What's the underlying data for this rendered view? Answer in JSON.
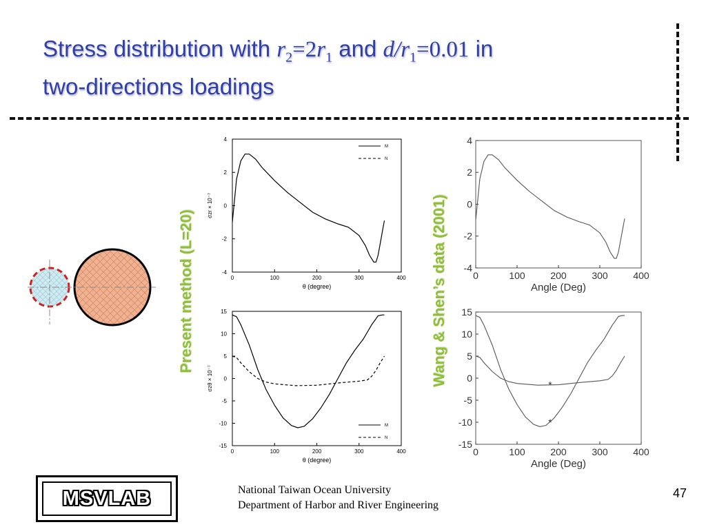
{
  "title": {
    "t1": "Stress distribution   with ",
    "r": "r",
    "sub2": "2",
    "eq2": "=2",
    "sub1": "1",
    "and": " and ",
    "d": "d/r",
    "eq3": "=0.01",
    "in": " in",
    "line2": "two-directions loadings"
  },
  "labels": {
    "present": "Present method (L=20)",
    "wang": "Wang & Shen’s data (2001)"
  },
  "footer": {
    "line1": "National Taiwan Ocean University",
    "line2": "Department of Harbor and River Engineering",
    "page": "47"
  },
  "logo": "MSVLAB",
  "colors": {
    "title": "#2f3fa6",
    "label_green": "#8fbf3a",
    "hole_red": "#d02020",
    "circle_fill": "#f2b18f",
    "small_fill": "#cfeaf0"
  },
  "chart_data": [
    {
      "type": "line",
      "id": "present-top",
      "xlabel": "θ (degree)",
      "ylabel": "σzr × 10⁻⁷",
      "xlim": [
        0,
        400
      ],
      "ylim": [
        -4,
        4
      ],
      "xticks": [
        0,
        100,
        200,
        300,
        400
      ],
      "yticks": [
        -4,
        -2,
        0,
        2,
        4
      ],
      "legend": [
        "M",
        "N"
      ],
      "series": [
        {
          "style": "solid",
          "x": [
            0,
            10,
            20,
            30,
            40,
            55,
            70,
            100,
            130,
            160,
            190,
            220,
            250,
            275,
            300,
            315,
            325,
            335,
            340,
            345,
            350,
            355,
            360
          ],
          "y": [
            -1.0,
            1.6,
            2.7,
            3.1,
            3.1,
            2.8,
            2.3,
            1.5,
            0.8,
            0.2,
            -0.4,
            -0.8,
            -1.1,
            -1.3,
            -1.8,
            -2.4,
            -3.0,
            -3.4,
            -3.4,
            -3.0,
            -2.3,
            -1.6,
            -0.9
          ]
        }
      ]
    },
    {
      "type": "line",
      "id": "present-bottom",
      "xlabel": "θ (degree)",
      "ylabel": "σzθ × 10⁻⁷",
      "xlim": [
        0,
        400
      ],
      "ylim": [
        -15,
        15
      ],
      "xticks": [
        0,
        100,
        200,
        300,
        400
      ],
      "yticks": [
        -15,
        -10,
        -5,
        0,
        5,
        10,
        15
      ],
      "legend": [
        "M",
        "N"
      ],
      "series": [
        {
          "style": "solid",
          "x": [
            0,
            10,
            20,
            40,
            60,
            80,
            100,
            120,
            140,
            155,
            170,
            190,
            210,
            230,
            250,
            270,
            290,
            310,
            330,
            345,
            355,
            360
          ],
          "y": [
            14.2,
            13.8,
            12.0,
            7.5,
            2.0,
            -2.5,
            -6.0,
            -8.8,
            -10.5,
            -11.0,
            -10.7,
            -9.0,
            -6.5,
            -3.5,
            0.0,
            3.5,
            6.3,
            8.8,
            12.0,
            14.0,
            14.2,
            14.2
          ]
        },
        {
          "style": "dashed",
          "x": [
            0,
            10,
            20,
            40,
            60,
            80,
            100,
            150,
            200,
            250,
            300,
            320,
            330,
            340,
            350,
            360
          ],
          "y": [
            5.0,
            4.7,
            3.5,
            1.5,
            0.0,
            -0.8,
            -1.2,
            -1.6,
            -1.5,
            -1.0,
            -0.6,
            -0.3,
            0.5,
            1.8,
            3.5,
            5.0
          ]
        }
      ]
    },
    {
      "type": "line",
      "id": "wang-top",
      "xlabel": "Angle (Deg)",
      "ylabel": "",
      "xlim": [
        0,
        400
      ],
      "ylim": [
        -4,
        4
      ],
      "xticks": [
        0,
        100,
        200,
        300,
        400
      ],
      "yticks": [
        -4,
        -2,
        0,
        2,
        4
      ],
      "series": [
        {
          "style": "solid",
          "x": [
            0,
            10,
            20,
            30,
            40,
            55,
            70,
            100,
            130,
            160,
            190,
            220,
            250,
            275,
            300,
            315,
            325,
            335,
            340,
            345,
            350,
            355,
            360
          ],
          "y": [
            -1.0,
            1.6,
            2.7,
            3.1,
            3.1,
            2.8,
            2.3,
            1.5,
            0.8,
            0.2,
            -0.4,
            -0.8,
            -1.1,
            -1.3,
            -1.8,
            -2.4,
            -3.0,
            -3.4,
            -3.4,
            -3.0,
            -2.3,
            -1.6,
            -0.9
          ]
        }
      ]
    },
    {
      "type": "line",
      "id": "wang-bottom",
      "xlabel": "Angle (Deg)",
      "ylabel": "",
      "xlim": [
        0,
        400
      ],
      "ylim": [
        -15,
        15
      ],
      "xticks": [
        0,
        100,
        200,
        300,
        400
      ],
      "yticks": [
        -15,
        -10,
        -5,
        0,
        5,
        10,
        15
      ],
      "series": [
        {
          "style": "solid",
          "marker_at": [
            180,
            -10.0
          ],
          "x": [
            0,
            10,
            20,
            40,
            60,
            80,
            100,
            120,
            140,
            155,
            170,
            190,
            210,
            230,
            250,
            270,
            290,
            310,
            330,
            345,
            355,
            360
          ],
          "y": [
            14.2,
            13.8,
            12.0,
            7.5,
            2.0,
            -2.5,
            -6.0,
            -8.8,
            -10.5,
            -11.0,
            -10.7,
            -9.0,
            -6.5,
            -3.5,
            0.0,
            3.5,
            6.3,
            8.8,
            12.0,
            14.0,
            14.2,
            14.2
          ]
        },
        {
          "style": "solid",
          "marker_at": [
            180,
            -1.5
          ],
          "x": [
            0,
            10,
            20,
            40,
            60,
            80,
            100,
            150,
            200,
            250,
            300,
            320,
            330,
            340,
            350,
            360
          ],
          "y": [
            5.0,
            4.7,
            3.5,
            1.5,
            0.0,
            -0.8,
            -1.2,
            -1.6,
            -1.5,
            -1.0,
            -0.6,
            -0.3,
            0.5,
            1.8,
            3.5,
            5.0
          ]
        }
      ]
    }
  ]
}
